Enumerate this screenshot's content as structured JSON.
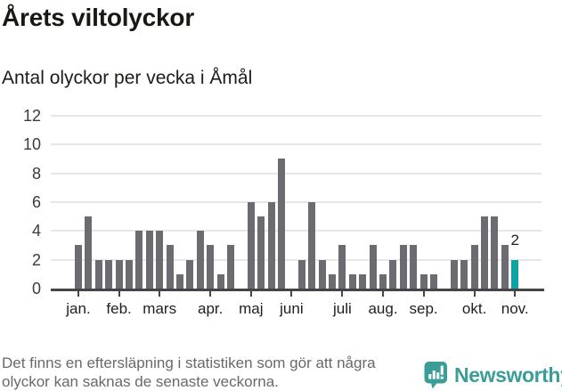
{
  "header": {
    "title": "Årets viltolyckor",
    "subtitle": "Antal olyckor per vecka i Åmål"
  },
  "chart_data": {
    "type": "bar",
    "title": "Årets viltolyckor",
    "subtitle": "Antal olyckor per vecka i Åmål",
    "x_unit": "vecka",
    "weeks_count": 44,
    "values": [
      3,
      5,
      2,
      2,
      2,
      2,
      4,
      4,
      4,
      3,
      1,
      2,
      4,
      3,
      1,
      3,
      0,
      6,
      5,
      6,
      9,
      0,
      2,
      6,
      2,
      1,
      3,
      1,
      1,
      3,
      1,
      2,
      3,
      3,
      1,
      1,
      0,
      2,
      2,
      3,
      5,
      5,
      3,
      2
    ],
    "months": [
      {
        "label": "jan.",
        "week": 1
      },
      {
        "label": "feb.",
        "week": 5
      },
      {
        "label": "mars",
        "week": 9
      },
      {
        "label": "apr.",
        "week": 14
      },
      {
        "label": "maj",
        "week": 18
      },
      {
        "label": "juni",
        "week": 22
      },
      {
        "label": "juli",
        "week": 27
      },
      {
        "label": "aug.",
        "week": 31
      },
      {
        "label": "sep.",
        "week": 35
      },
      {
        "label": "okt.",
        "week": 40
      },
      {
        "label": "nov.",
        "week": 44
      }
    ],
    "yticks": [
      0,
      2,
      4,
      6,
      8,
      10,
      12
    ],
    "ylim": [
      0,
      12
    ],
    "grid": true,
    "highlight_last_bar": true,
    "last_bar_label": "2",
    "colors": {
      "bar": "#6b6b71",
      "highlight": "#0ba3a3",
      "gridline": "#e7e7e7",
      "axis": "#454545"
    }
  },
  "footer": {
    "note_line1": "Det finns en eftersläpning i statistiken som gör att några",
    "note_line2": "olyckor kan saknas de senaste veckorna.",
    "brand": "Newsworthy",
    "brand_color": "#3a9d97"
  }
}
